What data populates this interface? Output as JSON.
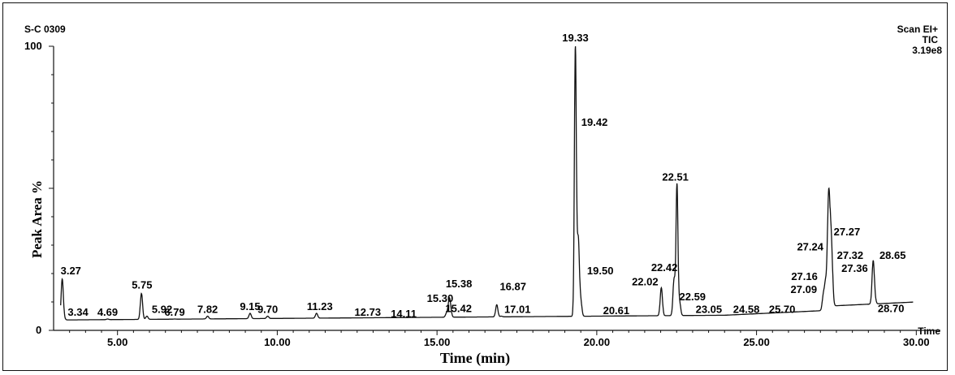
{
  "header": {
    "sample": "S-C 0309",
    "scan": "Scan EI+",
    "tic": "TIC",
    "intensity": "3.19e8"
  },
  "chart_data": {
    "type": "line",
    "xlabel": "Time (min)",
    "xunit_label": "Time",
    "ylabel": "Peak Area %",
    "xlim": [
      3.0,
      30.5
    ],
    "ylim": [
      0,
      100
    ],
    "x_ticks": [
      5.0,
      10.0,
      15.0,
      20.0,
      25.0,
      30.0
    ],
    "x_tick_labels": [
      "5.00",
      "10.00",
      "15.00",
      "20.00",
      "25.00",
      "30.00"
    ],
    "y_tick_labels": [
      "0",
      "100"
    ],
    "peaks": [
      {
        "label": "3.27",
        "rt": 3.27,
        "height": 18
      },
      {
        "label": "3.34",
        "rt": 3.34,
        "height": 4
      },
      {
        "label": "4.69",
        "rt": 4.69,
        "height": 4
      },
      {
        "label": "5.75",
        "rt": 5.75,
        "height": 13
      },
      {
        "label": "5.92",
        "rt": 5.92,
        "height": 5
      },
      {
        "label": "6.79",
        "rt": 6.79,
        "height": 4
      },
      {
        "label": "7.82",
        "rt": 7.82,
        "height": 5
      },
      {
        "label": "9.15",
        "rt": 9.15,
        "height": 6
      },
      {
        "label": "9.70",
        "rt": 9.7,
        "height": 5
      },
      {
        "label": "11.23",
        "rt": 11.23,
        "height": 6
      },
      {
        "label": "12.73",
        "rt": 12.73,
        "height": 4
      },
      {
        "label": "14.11",
        "rt": 14.11,
        "height": 4
      },
      {
        "label": "15.30",
        "rt": 15.3,
        "height": 6
      },
      {
        "label": "15.38",
        "rt": 15.38,
        "height": 10
      },
      {
        "label": "15.42",
        "rt": 15.42,
        "height": 7
      },
      {
        "label": "16.87",
        "rt": 16.87,
        "height": 9
      },
      {
        "label": "17.01",
        "rt": 17.01,
        "height": 5
      },
      {
        "label": "19.33",
        "rt": 19.33,
        "height": 100
      },
      {
        "label": "19.42",
        "rt": 19.42,
        "height": 32
      },
      {
        "label": "19.50",
        "rt": 19.5,
        "height": 10
      },
      {
        "label": "20.61",
        "rt": 20.61,
        "height": 4
      },
      {
        "label": "22.02",
        "rt": 22.02,
        "height": 15
      },
      {
        "label": "22.42",
        "rt": 22.42,
        "height": 18
      },
      {
        "label": "22.51",
        "rt": 22.51,
        "height": 51
      },
      {
        "label": "22.59",
        "rt": 22.59,
        "height": 10
      },
      {
        "label": "23.05",
        "rt": 23.05,
        "height": 5
      },
      {
        "label": "24.58",
        "rt": 24.58,
        "height": 5
      },
      {
        "label": "25.70",
        "rt": 25.7,
        "height": 5
      },
      {
        "label": "27.09",
        "rt": 27.09,
        "height": 12
      },
      {
        "label": "27.16",
        "rt": 27.16,
        "height": 16
      },
      {
        "label": "27.24",
        "rt": 27.24,
        "height": 27
      },
      {
        "label": "27.27",
        "rt": 27.27,
        "height": 30
      },
      {
        "label": "27.32",
        "rt": 27.32,
        "height": 24
      },
      {
        "label": "27.36",
        "rt": 27.36,
        "height": 20
      },
      {
        "label": "28.65",
        "rt": 28.65,
        "height": 24
      },
      {
        "label": "28.70",
        "rt": 28.7,
        "height": 11
      }
    ]
  }
}
